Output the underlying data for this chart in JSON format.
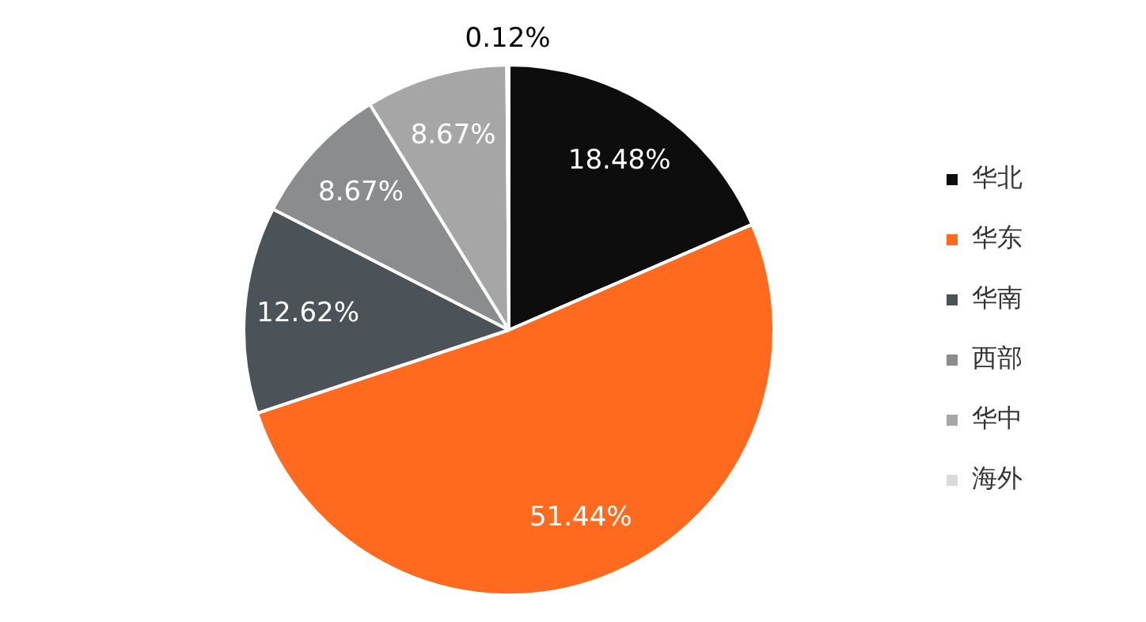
{
  "chart_data": {
    "type": "pie",
    "categories": [
      "华北",
      "华东",
      "华南",
      "西部",
      "华中",
      "海外"
    ],
    "values": [
      18.48,
      51.44,
      12.62,
      8.67,
      8.67,
      0.12
    ],
    "colors": [
      "#0d0d0d",
      "#ff6a1f",
      "#4b5258",
      "#8a8c8e",
      "#a6a6a6",
      "#d9d9d9"
    ],
    "value_labels": [
      "18.48%",
      "51.44%",
      "12.62%",
      "8.67%",
      "8.67%",
      "0.12%"
    ],
    "legend": "right"
  }
}
